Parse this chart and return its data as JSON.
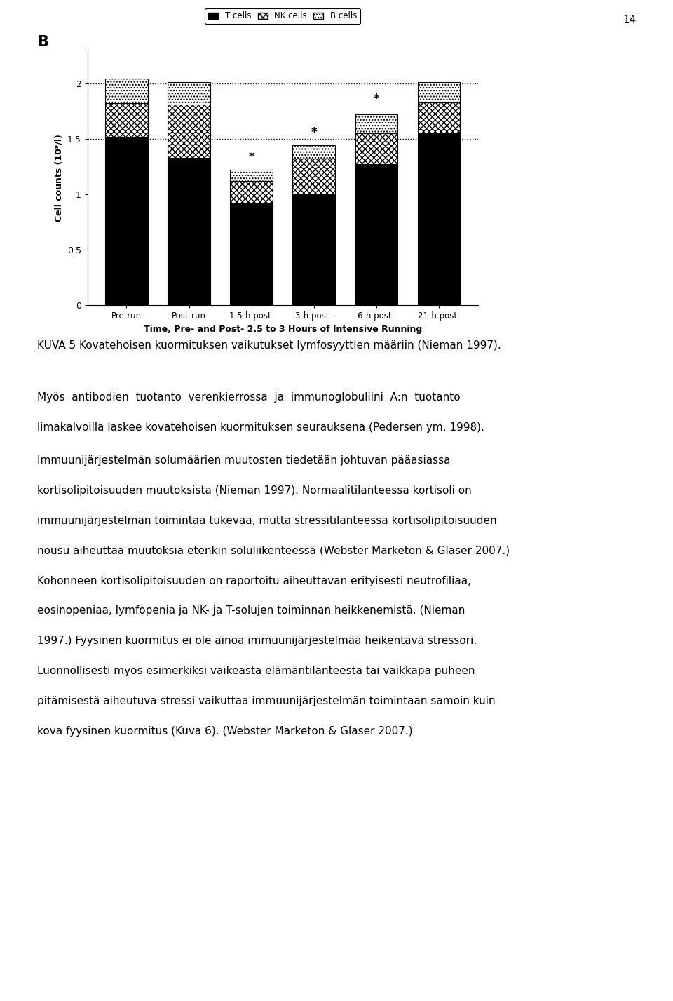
{
  "page_number": "14",
  "panel_label": "B",
  "categories": [
    "Pre-run",
    "Post-run",
    "1.5-h post-",
    "3-h post-",
    "6-h post-",
    "21-h post-"
  ],
  "xlabel": "Time, Pre- and Post- 2.5 to 3 Hours of Intensive Running",
  "ylabel": "Cell counts (10⁹/l)",
  "ylim": [
    0,
    2.3
  ],
  "yticks": [
    0,
    0.5,
    1,
    1.5,
    2
  ],
  "t_cells": [
    1.52,
    1.33,
    0.92,
    1.0,
    1.27,
    1.55
  ],
  "nk_cells": [
    0.3,
    0.48,
    0.2,
    0.32,
    0.28,
    0.28
  ],
  "b_cells": [
    0.22,
    0.2,
    0.1,
    0.12,
    0.17,
    0.18
  ],
  "star_positions": [
    false,
    false,
    true,
    true,
    true,
    false
  ],
  "star_heights": [
    0,
    0,
    1.25,
    1.47,
    1.77,
    0
  ],
  "dotted_line_y": [
    1.5,
    2.0
  ],
  "figure_caption": "KUVA 5 Kovatehoisen kuormituksen vaikutukset lymfosyyttien määriin (Nieman 1997).",
  "para1": "Myös antibodien tuotanto verenkierrossa ja immunoglobuliini A:n tuotanto limakalvoilla laskee kovatehoisen kuormituksen seurauksena (Pedersen ym. 1998).",
  "para2_line1": "Immuunijärjestelmän solumäärien muutosten tiedetään johtuvan pääasiassa",
  "para2_line2": "kortisolipitoisuuden muutoksista (Nieman 1997). Normaalitilanteessa kortisoli on",
  "para2_line3": "immuunijärjestelmän toimintaa tukevaa, mutta stressitilanteessa kortisolipitoisuuden",
  "para2_line4": "nousu aiheuttaa muutoksia etenkin soluliikenteessä (Webster Marketon & Glaser 2007.)",
  "para2_line5": "Kohonneen kortisolipitoisuuden on raportoitu aiheuttavan erityisesti neutrofiliaa,",
  "para2_line6": "eosinopeniaa, lymfopenia ja NK- ja T-solujen toiminnan heikkenemistä. (Nieman",
  "para2_line7": "1997.) Fyysinen kuormitus ei ole ainoa immuunijärjestelmää heikentävä stressori.",
  "para2_line8": "Luonnollisesti myös esimerkiksi vaikeasta elämäntilanteesta tai vaikkapa puheen",
  "para2_line9": "pitämisestä aiheutuva stressi vaikuttaa immuunijärjestelmän toimintaan samoin kuin",
  "para2_line10": "kova fyysinen kuormitus (Kuva 6). (Webster Marketon & Glaser 2007.)"
}
